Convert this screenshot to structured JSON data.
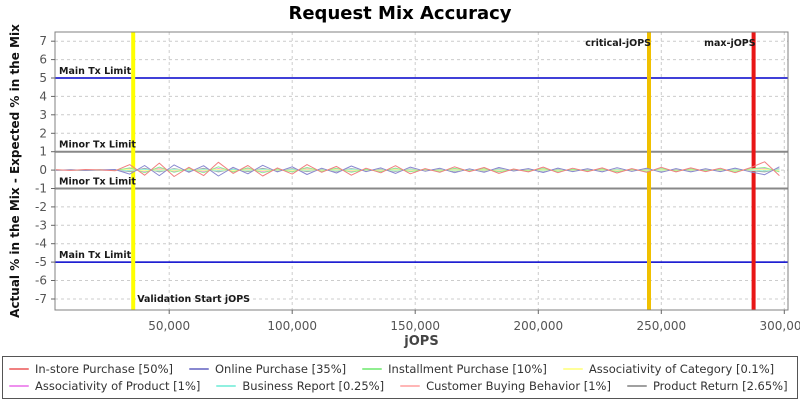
{
  "chart_data": {
    "type": "line",
    "title": "Request Mix Accuracy",
    "xlabel": "jOPS",
    "ylabel": "Actual % in the Mix - Expected % in the Mix",
    "xlim": [
      3600,
      301500
    ],
    "ylim": [
      -7.6,
      7.5
    ],
    "grid": true,
    "legend_position": "bottom",
    "xticks": {
      "values": [
        50000,
        100000,
        150000,
        200000,
        250000,
        300000
      ],
      "labels": [
        "50,000",
        "100,000",
        "150,000",
        "200,000",
        "250,000",
        "300,000"
      ]
    },
    "yticks": {
      "values": [
        7,
        6,
        5,
        4,
        3,
        2,
        1,
        0,
        -1,
        -2,
        -3,
        -4,
        -5,
        -6,
        -7
      ]
    },
    "x": [
      4000,
      10000,
      16000,
      22000,
      28000,
      34000,
      40000,
      46000,
      52000,
      58000,
      64000,
      70000,
      76000,
      82000,
      88000,
      94000,
      100000,
      106000,
      112000,
      118000,
      124000,
      130000,
      136000,
      142000,
      148000,
      154000,
      160000,
      166000,
      172000,
      178000,
      184000,
      190000,
      196000,
      202000,
      208000,
      214000,
      220000,
      226000,
      232000,
      238000,
      244000,
      250000,
      256000,
      262000,
      268000,
      274000,
      280000,
      286000,
      292000,
      298000
    ],
    "series": [
      {
        "name": "In-store Purchase [50%]",
        "color": "#f08080",
        "values": [
          0.02,
          -0.02,
          0.03,
          0.01,
          -0.04,
          0.3,
          -0.28,
          0.38,
          -0.35,
          0.15,
          -0.3,
          0.42,
          -0.18,
          0.25,
          -0.32,
          0.12,
          -0.22,
          0.3,
          -0.12,
          0.2,
          -0.28,
          0.1,
          -0.15,
          0.24,
          -0.2,
          0.08,
          -0.12,
          0.18,
          -0.08,
          0.14,
          -0.18,
          0.06,
          -0.1,
          0.16,
          -0.14,
          0.1,
          -0.08,
          0.12,
          -0.16,
          0.08,
          -0.12,
          0.15,
          -0.1,
          0.12,
          -0.08,
          0.1,
          -0.14,
          0.12,
          0.45,
          -0.3
        ]
      },
      {
        "name": "Online Purchase [35%]",
        "color": "#8888d0",
        "values": [
          -0.01,
          0.02,
          -0.02,
          0.01,
          0.03,
          -0.22,
          0.25,
          -0.3,
          0.28,
          -0.12,
          0.24,
          -0.32,
          0.15,
          -0.2,
          0.26,
          -0.1,
          0.18,
          -0.24,
          0.1,
          -0.16,
          0.22,
          -0.08,
          0.12,
          -0.18,
          0.16,
          -0.06,
          0.1,
          -0.14,
          0.07,
          -0.12,
          0.14,
          -0.05,
          0.08,
          -0.13,
          0.11,
          -0.08,
          0.07,
          -0.1,
          0.13,
          -0.07,
          0.1,
          -0.12,
          0.08,
          -0.1,
          0.07,
          -0.08,
          0.11,
          -0.09,
          -0.25,
          0.18
        ]
      },
      {
        "name": "Installment Purchase [10%]",
        "color": "#90ee90",
        "values": [
          0.01,
          0.0,
          -0.01,
          0.02,
          -0.02,
          0.12,
          -0.14,
          0.16,
          -0.12,
          0.08,
          -0.14,
          0.18,
          -0.1,
          0.12,
          -0.15,
          0.06,
          -0.1,
          0.14,
          -0.06,
          0.1,
          -0.12,
          0.05,
          -0.08,
          0.11,
          -0.09,
          0.04,
          -0.06,
          0.09,
          -0.04,
          0.07,
          -0.09,
          0.03,
          -0.05,
          0.08,
          -0.07,
          0.05,
          -0.04,
          0.06,
          -0.08,
          0.04,
          -0.06,
          0.08,
          -0.05,
          0.06,
          -0.04,
          0.05,
          -0.07,
          0.06,
          0.14,
          -0.1
        ]
      },
      {
        "name": "Associativity of Category [0.1%]",
        "color": "#ffff99",
        "values": [
          0.0,
          0.01,
          -0.01,
          0.0,
          0.01,
          0.03,
          -0.03,
          0.02,
          -0.02,
          0.03,
          -0.02,
          0.03,
          -0.03,
          0.02,
          -0.02,
          0.01,
          -0.02,
          0.02,
          -0.01,
          0.02,
          -0.02,
          0.01,
          -0.01,
          0.02,
          -0.01,
          0.01,
          -0.01,
          0.01,
          -0.01,
          0.01,
          -0.01,
          0.01,
          -0.01,
          0.01,
          -0.01,
          0.01,
          -0.01,
          0.01,
          -0.01,
          0.01,
          -0.01,
          0.01,
          -0.01,
          0.01,
          -0.01,
          0.01,
          -0.01,
          0.01,
          0.03,
          -0.02
        ]
      },
      {
        "name": "Associativity of Product [1%]",
        "color": "#ee90ee",
        "values": [
          0.01,
          -0.01,
          0.01,
          0.0,
          -0.01,
          0.05,
          -0.06,
          0.06,
          -0.05,
          0.04,
          -0.06,
          0.07,
          -0.04,
          0.05,
          -0.06,
          0.03,
          -0.04,
          0.05,
          -0.03,
          0.04,
          -0.05,
          0.02,
          -0.03,
          0.05,
          -0.04,
          0.02,
          -0.03,
          0.04,
          -0.02,
          0.03,
          -0.04,
          0.02,
          -0.02,
          0.03,
          -0.03,
          0.02,
          -0.02,
          0.03,
          -0.03,
          0.02,
          -0.03,
          0.03,
          -0.02,
          0.03,
          -0.02,
          0.02,
          -0.03,
          0.02,
          0.06,
          -0.04
        ]
      },
      {
        "name": "Business Report [0.25%]",
        "color": "#90f0e0",
        "values": [
          -0.01,
          0.01,
          0.0,
          -0.01,
          0.01,
          -0.04,
          0.05,
          -0.05,
          0.04,
          -0.03,
          0.05,
          -0.05,
          0.03,
          -0.04,
          0.05,
          -0.02,
          0.03,
          -0.04,
          0.02,
          -0.03,
          0.04,
          -0.02,
          0.02,
          -0.04,
          0.03,
          -0.02,
          0.02,
          -0.03,
          0.02,
          -0.02,
          0.03,
          -0.01,
          0.02,
          -0.03,
          0.02,
          -0.02,
          0.02,
          -0.02,
          0.03,
          -0.02,
          0.02,
          -0.03,
          0.02,
          -0.02,
          0.02,
          -0.02,
          0.03,
          -0.02,
          -0.05,
          0.04
        ]
      },
      {
        "name": "Customer Buying Behavior [1%]",
        "color": "#ffb6b6",
        "values": [
          0.01,
          0.0,
          -0.01,
          0.01,
          0.0,
          0.07,
          -0.07,
          0.08,
          -0.06,
          0.05,
          -0.07,
          0.08,
          -0.05,
          0.06,
          -0.07,
          0.04,
          -0.05,
          0.07,
          -0.04,
          0.05,
          -0.06,
          0.03,
          -0.04,
          0.06,
          -0.05,
          0.03,
          -0.03,
          0.05,
          -0.03,
          0.04,
          -0.05,
          0.02,
          -0.03,
          0.04,
          -0.04,
          0.03,
          -0.02,
          0.03,
          -0.04,
          0.03,
          -0.03,
          0.04,
          -0.03,
          0.03,
          -0.02,
          0.03,
          -0.04,
          0.03,
          0.08,
          -0.05
        ]
      },
      {
        "name": "Product Return [2.65%]",
        "color": "#a0a0a0",
        "values": [
          -0.01,
          0.01,
          -0.01,
          0.0,
          0.01,
          -0.08,
          0.09,
          -0.1,
          0.08,
          -0.06,
          0.09,
          -0.1,
          0.06,
          -0.08,
          0.09,
          -0.05,
          0.07,
          -0.08,
          0.05,
          -0.06,
          0.08,
          -0.04,
          0.05,
          -0.07,
          0.06,
          -0.03,
          0.04,
          -0.06,
          0.03,
          -0.05,
          0.06,
          -0.03,
          0.04,
          -0.05,
          0.04,
          -0.03,
          0.03,
          -0.04,
          0.05,
          -0.03,
          0.04,
          -0.05,
          0.03,
          -0.04,
          0.03,
          -0.03,
          0.04,
          -0.03,
          -0.1,
          0.07
        ]
      }
    ],
    "limit_lines": [
      {
        "label": "Main Tx Limit",
        "y": 5,
        "color": "#0000cc"
      },
      {
        "label": "Minor Tx Limit",
        "y": 1,
        "color": "#888888"
      },
      {
        "label": "Minor Tx Limit",
        "y": -1,
        "color": "#888888"
      },
      {
        "label": "Main Tx Limit",
        "y": -5,
        "color": "#0000cc"
      }
    ],
    "marker_lines": [
      {
        "label": "Validation Start jOPS",
        "x": 35400,
        "color": "#ffff00",
        "label_anchor": "start",
        "label_position": "bottom"
      },
      {
        "label": "critical-jOPS",
        "x": 245000,
        "color": "#f0c000",
        "label_anchor": "end",
        "label_position": "top"
      },
      {
        "label": "max-jOPS",
        "x": 287500,
        "color": "#e81616",
        "label_anchor": "end",
        "label_position": "top"
      }
    ]
  }
}
